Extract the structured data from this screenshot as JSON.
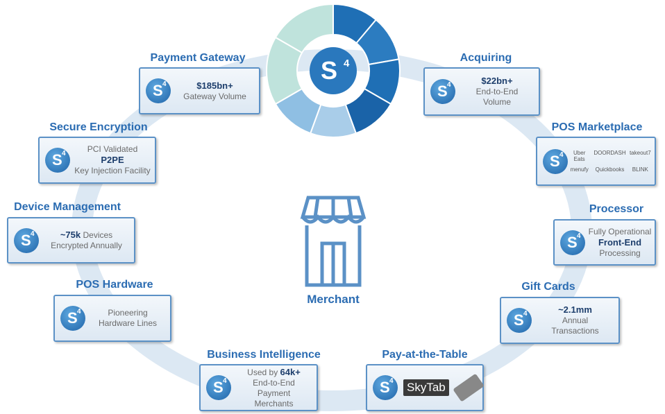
{
  "logo": {
    "letter": "S",
    "power": "4"
  },
  "center": {
    "label": "Merchant"
  },
  "nodes": [
    {
      "title": "Payment Gateway",
      "lines": [
        [
          {
            "text": "$185bn+",
            "bold": true
          }
        ],
        [
          {
            "text": "Gateway Volume",
            "bold": false
          }
        ]
      ]
    },
    {
      "title": "Acquiring",
      "lines": [
        [
          {
            "text": "$22bn+",
            "bold": true
          }
        ],
        [
          {
            "text": "End-to-End",
            "bold": false
          }
        ],
        [
          {
            "text": "Volume",
            "bold": false
          }
        ]
      ]
    },
    {
      "title": "POS Marketplace",
      "lines": [],
      "partners": [
        "Uber Eats",
        "DOORDASH",
        "takeout7",
        "menufy",
        "Quickbooks",
        "BLINK"
      ]
    },
    {
      "title": "Processor",
      "lines": [
        [
          {
            "text": "Fully Operational",
            "bold": false
          }
        ],
        [
          {
            "text": "Front-End",
            "bold": true
          }
        ],
        [
          {
            "text": "Processing",
            "bold": false
          }
        ]
      ]
    },
    {
      "title": "Gift Cards",
      "lines": [
        [
          {
            "text": "~2.1mm",
            "bold": true
          }
        ],
        [
          {
            "text": "Annual",
            "bold": false
          }
        ],
        [
          {
            "text": "Transactions",
            "bold": false
          }
        ]
      ]
    },
    {
      "title": "Pay-at-the-Table",
      "lines": [],
      "brand": "SkyTab"
    },
    {
      "title": "Business Intelligence",
      "lines": [
        [
          {
            "text": "Used by ",
            "bold": false
          },
          {
            "text": "64k+",
            "bold": true
          }
        ],
        [
          {
            "text": "End-to-End",
            "bold": false
          }
        ],
        [
          {
            "text": "Payment",
            "bold": false
          }
        ],
        [
          {
            "text": "Merchants",
            "bold": false
          }
        ]
      ]
    },
    {
      "title": "POS Hardware",
      "lines": [
        [
          {
            "text": "Pioneering",
            "bold": false
          }
        ],
        [
          {
            "text": "Hardware Lines",
            "bold": false
          }
        ]
      ]
    },
    {
      "title": "Device Management",
      "lines": [
        [
          {
            "text": "~75k",
            "bold": true
          },
          {
            "text": " Devices",
            "bold": false
          }
        ],
        [
          {
            "text": "Encrypted Annually",
            "bold": false
          }
        ]
      ]
    },
    {
      "title": "Secure Encryption",
      "lines": [
        [
          {
            "text": "PCI Validated",
            "bold": false
          }
        ],
        [
          {
            "text": "P2PE",
            "bold": true
          }
        ],
        [
          {
            "text": "Key Injection Facility",
            "bold": false
          }
        ]
      ]
    }
  ]
}
